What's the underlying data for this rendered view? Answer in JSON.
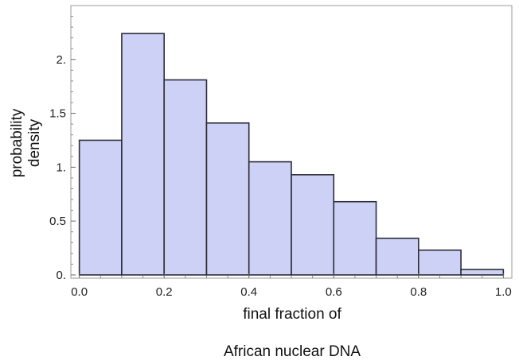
{
  "chart_data": {
    "type": "bar",
    "subtype": "histogram",
    "bins": [
      {
        "start": 0.0,
        "end": 0.1,
        "value": 1.25
      },
      {
        "start": 0.1,
        "end": 0.2,
        "value": 2.24
      },
      {
        "start": 0.2,
        "end": 0.3,
        "value": 1.81
      },
      {
        "start": 0.3,
        "end": 0.4,
        "value": 1.41
      },
      {
        "start": 0.4,
        "end": 0.5,
        "value": 1.05
      },
      {
        "start": 0.5,
        "end": 0.6,
        "value": 0.93
      },
      {
        "start": 0.6,
        "end": 0.7,
        "value": 0.68
      },
      {
        "start": 0.7,
        "end": 0.8,
        "value": 0.34
      },
      {
        "start": 0.8,
        "end": 0.9,
        "value": 0.23
      },
      {
        "start": 0.9,
        "end": 1.0,
        "value": 0.05
      }
    ],
    "xlabel_line1": "final fraction of",
    "xlabel_line2": "African nuclear DNA",
    "ylabel_line1": "probability",
    "ylabel_line2": "density",
    "xlim": [
      -0.02,
      1.02
    ],
    "ylim": [
      -0.03,
      2.5
    ],
    "xticks": [
      {
        "value": 0.0,
        "label": "0.0"
      },
      {
        "value": 0.2,
        "label": "0.2"
      },
      {
        "value": 0.4,
        "label": "0.4"
      },
      {
        "value": 0.6,
        "label": "0.6"
      },
      {
        "value": 0.8,
        "label": "0.8"
      },
      {
        "value": 1.0,
        "label": "1.0"
      }
    ],
    "yticks": [
      {
        "value": 0.0,
        "label": "0."
      },
      {
        "value": 0.5,
        "label": "0.5"
      },
      {
        "value": 1.0,
        "label": "1."
      },
      {
        "value": 1.5,
        "label": "1.5"
      },
      {
        "value": 2.0,
        "label": "2."
      }
    ],
    "grid": false,
    "legend": "none",
    "colors": {
      "bar_fill": "#ccd1f5",
      "bar_stroke": "#2d2d38",
      "frame": "#9a9a9a"
    }
  }
}
